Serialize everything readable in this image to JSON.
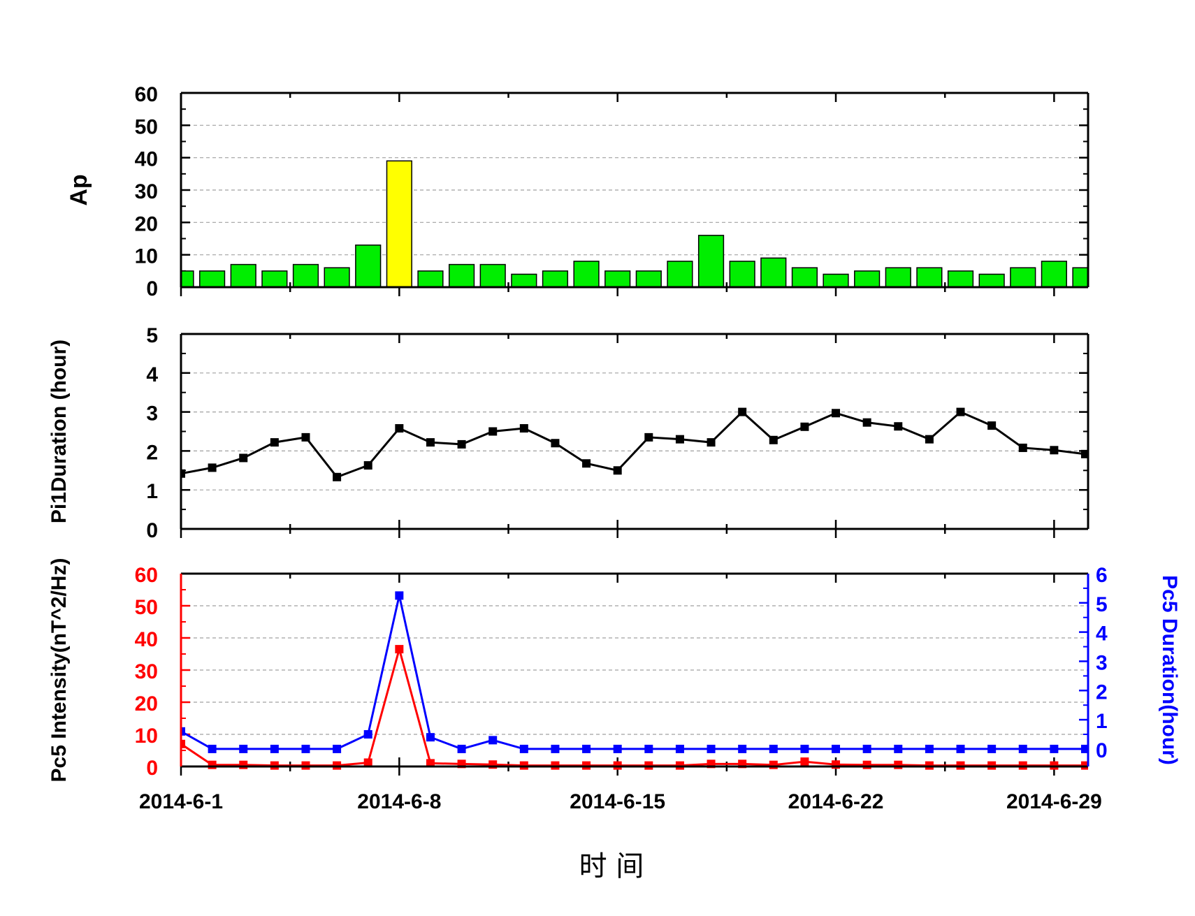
{
  "colors": {
    "ap_bar": "#00ee00",
    "ap_bar_highlight": "#ffff00",
    "pi1_line": "#000000",
    "pc5_intensity": "#ff0000",
    "pc5_duration": "#0000ff",
    "grid": "#a0a0a0"
  },
  "xaxis": {
    "title": "时 间",
    "tick_labels": [
      "2014-6-1",
      "2014-6-8",
      "2014-6-15",
      "2014-6-22",
      "2014-6-29"
    ]
  },
  "chart_data": [
    {
      "type": "bar",
      "ylabel": "Ap",
      "ylim": [
        0,
        60
      ],
      "yticks": [
        0,
        10,
        20,
        30,
        40,
        50,
        60
      ],
      "grid": true,
      "x": [
        "2014-6-1",
        "2014-6-2",
        "2014-6-3",
        "2014-6-4",
        "2014-6-5",
        "2014-6-6",
        "2014-6-7",
        "2014-6-8",
        "2014-6-9",
        "2014-6-10",
        "2014-6-11",
        "2014-6-12",
        "2014-6-13",
        "2014-6-14",
        "2014-6-15",
        "2014-6-16",
        "2014-6-17",
        "2014-6-18",
        "2014-6-19",
        "2014-6-20",
        "2014-6-21",
        "2014-6-22",
        "2014-6-23",
        "2014-6-24",
        "2014-6-25",
        "2014-6-26",
        "2014-6-27",
        "2014-6-28",
        "2014-6-29",
        "2014-6-30"
      ],
      "values": [
        5,
        5,
        7,
        5,
        7,
        6,
        13,
        39,
        5,
        7,
        7,
        4,
        5,
        8,
        5,
        5,
        8,
        16,
        8,
        9,
        6,
        4,
        5,
        6,
        6,
        5,
        4,
        6,
        8,
        6
      ],
      "highlight_index": 7
    },
    {
      "type": "line",
      "ylabel": "Pi1Duration (hour)",
      "ylim": [
        0,
        5
      ],
      "yticks": [
        0,
        1,
        2,
        3,
        4,
        5
      ],
      "grid": true,
      "x": [
        "2014-6-1",
        "2014-6-2",
        "2014-6-3",
        "2014-6-4",
        "2014-6-5",
        "2014-6-6",
        "2014-6-7",
        "2014-6-8",
        "2014-6-9",
        "2014-6-10",
        "2014-6-11",
        "2014-6-12",
        "2014-6-13",
        "2014-6-14",
        "2014-6-15",
        "2014-6-16",
        "2014-6-17",
        "2014-6-18",
        "2014-6-19",
        "2014-6-20",
        "2014-6-21",
        "2014-6-22",
        "2014-6-23",
        "2014-6-24",
        "2014-6-25",
        "2014-6-26",
        "2014-6-27",
        "2014-6-28",
        "2014-6-29",
        "2014-6-30"
      ],
      "values": [
        1.42,
        1.57,
        1.82,
        2.22,
        2.35,
        1.33,
        1.63,
        2.58,
        2.22,
        2.17,
        2.5,
        2.58,
        2.2,
        1.68,
        1.5,
        2.35,
        2.3,
        2.22,
        3.0,
        2.28,
        2.62,
        2.97,
        2.73,
        2.63,
        2.3,
        3.0,
        2.65,
        2.08,
        2.02,
        1.92
      ]
    },
    {
      "type": "line",
      "ylabel": "Pc5 Intensity(nT^2/Hz)",
      "ylim": [
        0,
        60
      ],
      "yticks": [
        0,
        10,
        20,
        30,
        40,
        50,
        60
      ],
      "y2label": "Pc5 Duration(hour)",
      "y2lim": [
        -0.6,
        6
      ],
      "y2ticks": [
        0,
        1,
        2,
        3,
        4,
        5,
        6
      ],
      "grid": true,
      "x": [
        "2014-6-1",
        "2014-6-2",
        "2014-6-3",
        "2014-6-4",
        "2014-6-5",
        "2014-6-6",
        "2014-6-7",
        "2014-6-8",
        "2014-6-9",
        "2014-6-10",
        "2014-6-11",
        "2014-6-12",
        "2014-6-13",
        "2014-6-14",
        "2014-6-15",
        "2014-6-16",
        "2014-6-17",
        "2014-6-18",
        "2014-6-19",
        "2014-6-20",
        "2014-6-21",
        "2014-6-22",
        "2014-6-23",
        "2014-6-24",
        "2014-6-25",
        "2014-6-26",
        "2014-6-27",
        "2014-6-28",
        "2014-6-29",
        "2014-6-30"
      ],
      "series": [
        {
          "axis": "left",
          "values": [
            7,
            0.5,
            0.5,
            0.3,
            0.3,
            0.3,
            1.2,
            36.5,
            1,
            0.8,
            0.6,
            0.3,
            0.3,
            0.3,
            0.3,
            0.3,
            0.3,
            0.8,
            0.8,
            0.5,
            1.5,
            0.6,
            0.5,
            0.5,
            0.3,
            0.3,
            0.3,
            0.3,
            0.3,
            0.3
          ]
        },
        {
          "axis": "right",
          "values": [
            0.6,
            0,
            0,
            0,
            0,
            0,
            0.5,
            5.25,
            0.4,
            0,
            0.3,
            0,
            0,
            0,
            0,
            0,
            0,
            0,
            0,
            0,
            0,
            0,
            0,
            0,
            0,
            0,
            0,
            0,
            0,
            0
          ]
        }
      ]
    }
  ]
}
